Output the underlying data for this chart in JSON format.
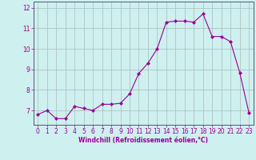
{
  "x": [
    0,
    1,
    2,
    3,
    4,
    5,
    6,
    7,
    8,
    9,
    10,
    11,
    12,
    13,
    14,
    15,
    16,
    17,
    18,
    19,
    20,
    21,
    22,
    23
  ],
  "y": [
    6.8,
    7.0,
    6.6,
    6.6,
    7.2,
    7.1,
    7.0,
    7.3,
    7.3,
    7.35,
    7.8,
    8.8,
    9.3,
    10.0,
    11.3,
    11.35,
    11.35,
    11.3,
    11.7,
    10.6,
    10.6,
    10.35,
    8.85,
    6.9
  ],
  "line_color": "#990099",
  "marker": "D",
  "marker_size": 2,
  "background_color": "#cef0ee",
  "grid_color": "#aabbbb",
  "xlabel": "Windchill (Refroidissement éolien,°C)",
  "ylabel": "",
  "xlim": [
    -0.5,
    23.5
  ],
  "ylim": [
    6.3,
    12.3
  ],
  "yticks": [
    7,
    8,
    9,
    10,
    11,
    12
  ],
  "xticks": [
    0,
    1,
    2,
    3,
    4,
    5,
    6,
    7,
    8,
    9,
    10,
    11,
    12,
    13,
    14,
    15,
    16,
    17,
    18,
    19,
    20,
    21,
    22,
    23
  ],
  "label_fontsize": 5.5,
  "tick_fontsize": 5.5
}
